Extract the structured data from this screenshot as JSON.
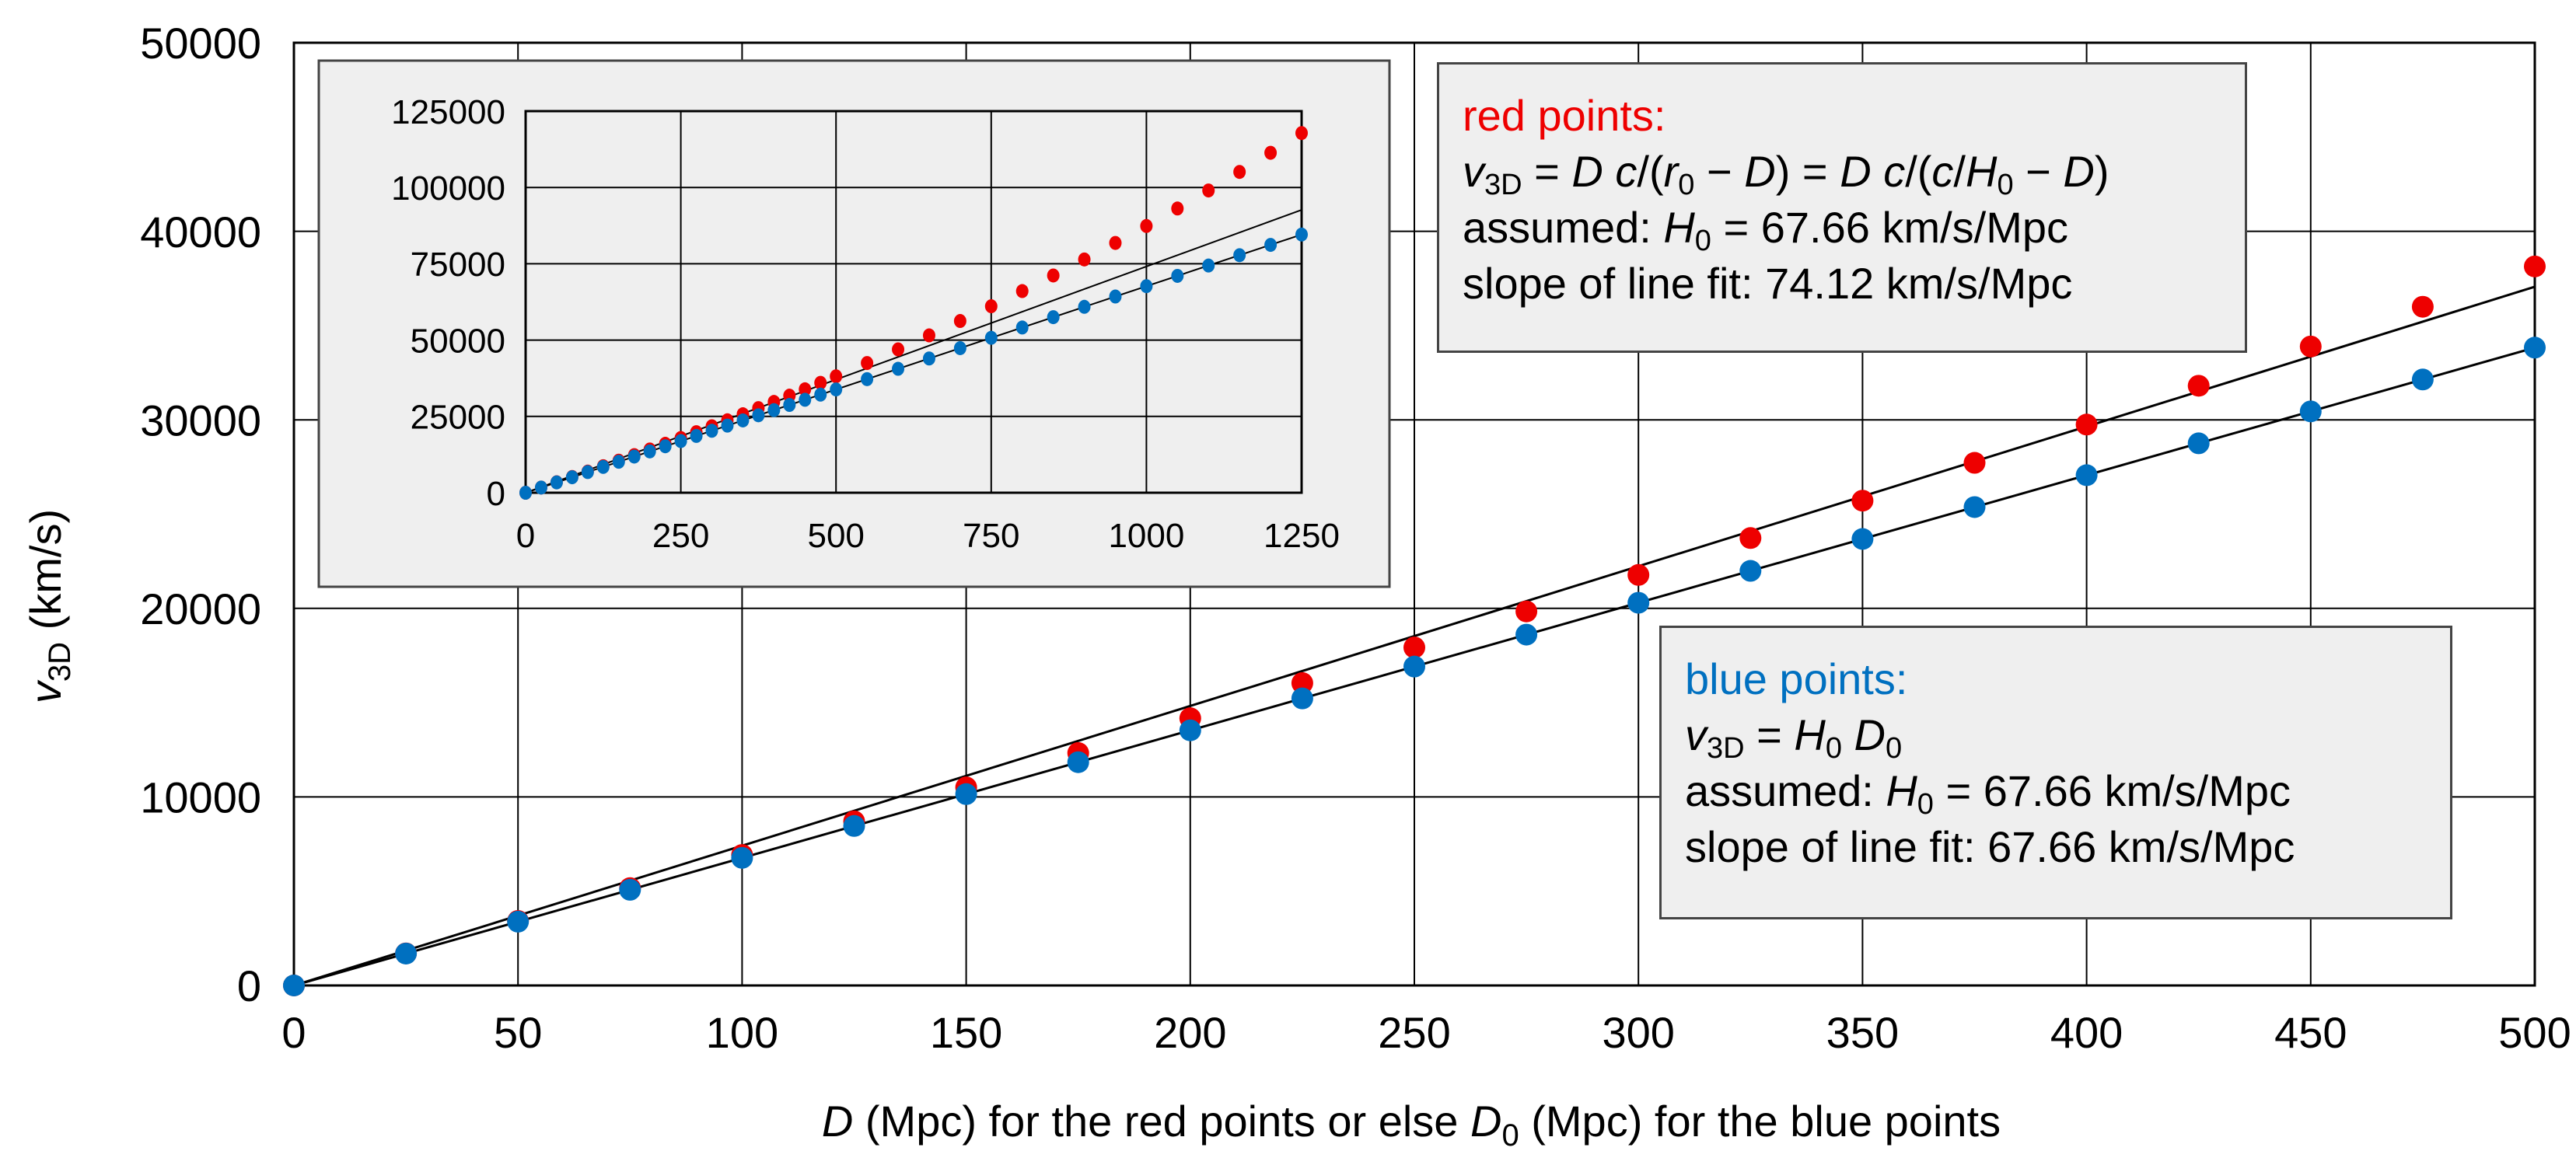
{
  "chart_data": [
    {
      "type": "scatter",
      "title": "",
      "xlabel": "D (Mpc) for the red points or else D0 (Mpc) for the blue points",
      "ylabel": "v3D (km/s)",
      "xlim": [
        0,
        500
      ],
      "ylim": [
        0,
        50000
      ],
      "x_ticks": [
        0,
        50,
        100,
        150,
        200,
        250,
        300,
        350,
        400,
        450,
        500
      ],
      "y_ticks": [
        0,
        10000,
        20000,
        30000,
        40000,
        50000
      ],
      "grid": true,
      "x": [
        0,
        25,
        50,
        75,
        100,
        125,
        150,
        175,
        200,
        225,
        250,
        275,
        300,
        325,
        350,
        375,
        400,
        425,
        450,
        475,
        500
      ],
      "series": [
        {
          "name": "red points",
          "color": "#ee0000",
          "values": [
            0,
            1701,
            3422,
            5162,
            6922,
            8703,
            10505,
            12328,
            14172,
            16038,
            17927,
            19838,
            21773,
            23730,
            25712,
            27719,
            29750,
            31807,
            33889,
            35998,
            38134
          ]
        },
        {
          "name": "blue points",
          "color": "#0070c0",
          "values": [
            0,
            1692,
            3383,
            5075,
            6766,
            8458,
            10149,
            11841,
            13532,
            15224,
            16915,
            18607,
            20298,
            21990,
            23681,
            25373,
            27064,
            28756,
            30447,
            32139,
            33830
          ]
        }
      ],
      "fit_lines": [
        {
          "name": "red line fit",
          "slope": 74.12,
          "color": "#000000"
        },
        {
          "name": "blue line fit",
          "slope": 67.66,
          "color": "#000000"
        }
      ],
      "annotations": [
        {
          "name": "red-legend",
          "title": "red points:",
          "lines": [
            "v3D = D c/(r0 − D) = D c/(c/H0 − D)",
            "assumed: H0 = 67.66 km/s/Mpc",
            "slope of line fit: 74.12 km/s/Mpc"
          ]
        },
        {
          "name": "blue-legend",
          "title": "blue points:",
          "lines": [
            "v3D = H0 D0",
            "assumed: H0 = 67.66 km/s/Mpc",
            "slope of line fit: 67.66 km/s/Mpc"
          ]
        }
      ]
    },
    {
      "type": "scatter",
      "title": "inset",
      "xlim": [
        0,
        1250
      ],
      "ylim": [
        0,
        125000
      ],
      "x_ticks": [
        0,
        250,
        500,
        750,
        1000,
        1250
      ],
      "y_ticks": [
        0,
        25000,
        50000,
        75000,
        100000,
        125000
      ],
      "grid": true,
      "x": [
        0,
        25,
        50,
        75,
        100,
        125,
        150,
        175,
        200,
        225,
        250,
        275,
        300,
        325,
        350,
        375,
        400,
        425,
        450,
        475,
        500,
        550,
        600,
        650,
        700,
        750,
        800,
        850,
        900,
        950,
        1000,
        1050,
        1100,
        1150,
        1200,
        1250
      ],
      "series": [
        {
          "name": "red points",
          "color": "#ee0000",
          "values": [
            0,
            1701,
            3422,
            5162,
            6922,
            8703,
            10505,
            12328,
            14172,
            16038,
            17927,
            19838,
            21773,
            23730,
            25712,
            27719,
            29750,
            31807,
            33889,
            35998,
            38134,
            42487,
            46955,
            51540,
            56248,
            61085,
            66055,
            71164,
            76417,
            81820,
            87380,
            93107,
            99006,
            105084,
            111352,
            117811
          ]
        },
        {
          "name": "blue points",
          "color": "#0070c0",
          "values": [
            0,
            1692,
            3383,
            5075,
            6766,
            8458,
            10149,
            11841,
            13532,
            15224,
            16915,
            18607,
            20298,
            21990,
            23681,
            25373,
            27064,
            28756,
            30447,
            32139,
            33830,
            37213,
            40596,
            43979,
            47362,
            50745,
            54128,
            57511,
            60894,
            64277,
            67660,
            71043,
            74426,
            77809,
            81192,
            84575
          ]
        }
      ],
      "fit_lines": [
        {
          "name": "red line fit",
          "slope": 74.12
        },
        {
          "name": "blue line fit",
          "slope": 67.66
        }
      ]
    }
  ],
  "axes": {
    "y_label_main": "v",
    "y_label_sub": "3D",
    "y_label_unit": " (km/s)",
    "x_label_parts": [
      "D",
      " (Mpc) for the red points or else ",
      "D",
      "0",
      " (Mpc) for the blue points"
    ]
  },
  "legend_red": {
    "title": "red points:",
    "eq_v": "v",
    "eq_sub3d": "3D",
    "eq_part1": " = ",
    "eq_D1": "D",
    "eq_c1": " c",
    "eq_part2": "/(",
    "eq_r": "r",
    "eq_r_sub": "0",
    "eq_part3": " − ",
    "eq_D2": "D",
    "eq_part4": ") = ",
    "eq_D3": "D",
    "eq_c2": " c",
    "eq_part5": "/(",
    "eq_c3": "c",
    "eq_part6": "/",
    "eq_H": "H",
    "eq_H_sub": "0",
    "eq_part7": " − ",
    "eq_D4": "D",
    "eq_part8": ")",
    "assumed_prefix": "assumed:  ",
    "assumed_H": "H",
    "assumed_H_sub": "0",
    "assumed_value": " = 67.66 km/s/Mpc",
    "slope_text": "slope of line fit:  74.12 km/s/Mpc"
  },
  "legend_blue": {
    "title": "blue points:",
    "eq_v": "v",
    "eq_sub3d": "3D",
    "eq_part1": " = ",
    "eq_H": "H",
    "eq_H_sub": "0",
    "eq_D": " D",
    "eq_D_sub": "0",
    "assumed_prefix": "assumed:  ",
    "assumed_H": "H",
    "assumed_H_sub": "0",
    "assumed_value": " = 67.66 km/s/Mpc",
    "slope_text": "slope of line fit:  67.66 km/s/Mpc"
  }
}
